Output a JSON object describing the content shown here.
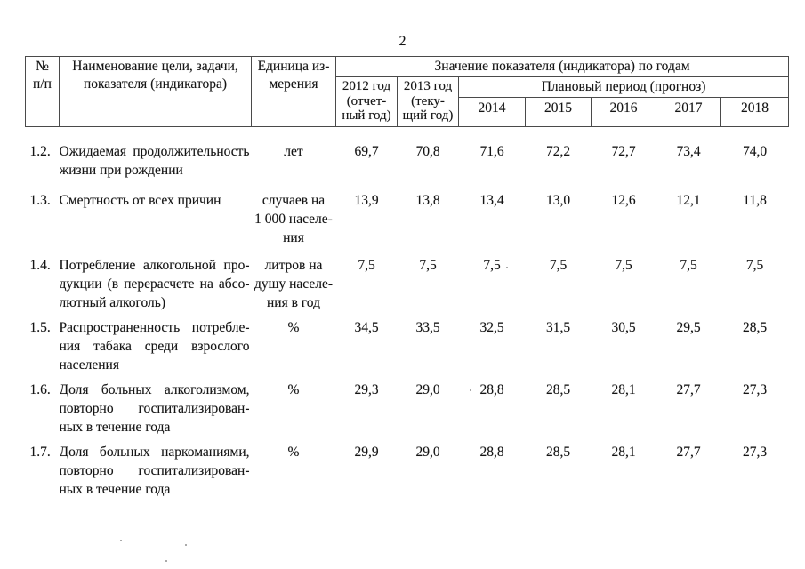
{
  "page": {
    "number": "2"
  },
  "table": {
    "header": {
      "num": "№\nп/п",
      "name": "Наименование цели, задачи,\nпоказателя (индикатора)",
      "unit": "Единица из-\nмерения",
      "values_title": "Значение показателя (индикатора) по годам",
      "col_2012": "2012 год\n(отчет-\nный год)",
      "col_2013": "2013 год\n(теку-\nщий год)",
      "plan_title": "Плановый период (прогноз)",
      "plan_years": [
        "2014",
        "2015",
        "2016",
        "2017",
        "2018"
      ]
    },
    "rows": [
      {
        "num": "1.2.",
        "name": "Ожидаемая продолжительность\nжизни при рождении",
        "unit": "лет",
        "values": [
          "69,7",
          "70,8",
          "71,6",
          "72,2",
          "72,7",
          "73,4",
          "74,0"
        ]
      },
      {
        "num": "1.3.",
        "name": "Смертность от всех причин",
        "unit": "случаев на\n1 000 населе-\nния",
        "values": [
          "13,9",
          "13,8",
          "13,4",
          "13,0",
          "12,6",
          "12,1",
          "11,8"
        ]
      },
      {
        "num": "1.4.",
        "name": "Потребление алкогольной про-\nдукции (в перерасчете на абсо-\nлютный алкоголь)",
        "unit": "литров на\nдушу населе-\nния в год",
        "values": [
          "7,5",
          "7,5",
          "7,5",
          "7,5",
          "7,5",
          "7,5",
          "7,5"
        ]
      },
      {
        "num": "1.5.",
        "name": "Распространенность потребле-\nния табака среди взрослого\nнаселения",
        "unit": "%",
        "values": [
          "34,5",
          "33,5",
          "32,5",
          "31,5",
          "30,5",
          "29,5",
          "28,5"
        ]
      },
      {
        "num": "1.6.",
        "name": "Доля больных алкоголизмом,\nповторно госпитализирован-\nных в течение года",
        "unit": "%",
        "values": [
          "29,3",
          "29,0",
          "28,8",
          "28,5",
          "28,1",
          "27,7",
          "27,3"
        ]
      },
      {
        "num": "1.7.",
        "name": "Доля больных наркоманиями,\nповторно госпитализирован-\nных в течение года",
        "unit": "%",
        "values": [
          "29,9",
          "29,0",
          "28,8",
          "28,5",
          "28,1",
          "27,7",
          "27,3"
        ]
      }
    ]
  }
}
